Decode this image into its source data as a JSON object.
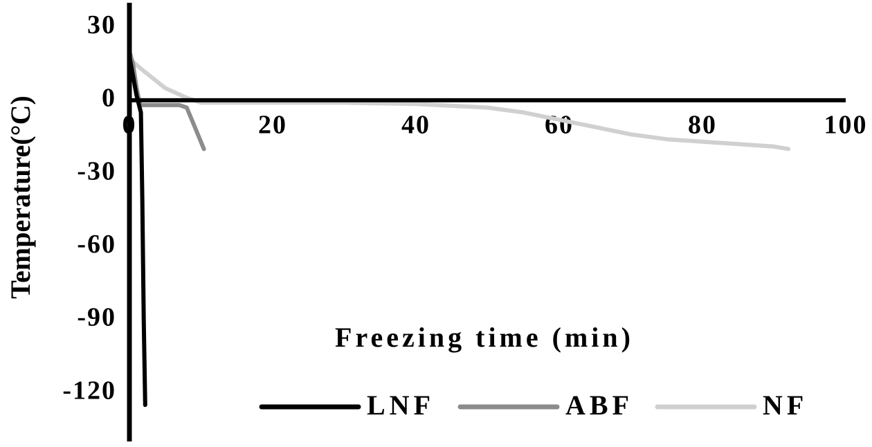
{
  "chart_data": {
    "type": "line",
    "x_label": "Freezing time (min)",
    "y_label": "Temperature(°C)",
    "xlim": [
      0,
      100
    ],
    "xticks": [
      0,
      20,
      40,
      60,
      80,
      100
    ],
    "ylim": [
      -140,
      40
    ],
    "yticks": [
      30,
      0,
      -30,
      -60,
      -90,
      -120
    ],
    "series": [
      {
        "name": "LNF",
        "color": "#000000",
        "x": [
          0,
          1,
          1.6,
          1.8,
          2,
          2.2
        ],
        "values": [
          18,
          2,
          -5,
          -40,
          -90,
          -125
        ]
      },
      {
        "name": "ABF",
        "color": "#8c8c8c",
        "x": [
          0,
          0.5,
          1,
          1.5,
          2,
          5,
          7,
          8,
          9,
          10.4
        ],
        "values": [
          20,
          15,
          5,
          -2,
          -2,
          -2,
          -2,
          -3,
          -10,
          -20
        ]
      },
      {
        "name": "NF",
        "color": "#d0d0d0",
        "x": [
          0,
          2,
          5,
          8,
          10,
          12,
          20,
          30,
          40,
          50,
          55,
          60,
          65,
          70,
          75,
          80,
          85,
          90,
          92
        ],
        "values": [
          17,
          12,
          5,
          1,
          -1,
          -1,
          -1,
          -1,
          -1.5,
          -3,
          -5,
          -8,
          -11,
          -14,
          -16,
          -17,
          -18,
          -19,
          -20
        ]
      }
    ]
  }
}
